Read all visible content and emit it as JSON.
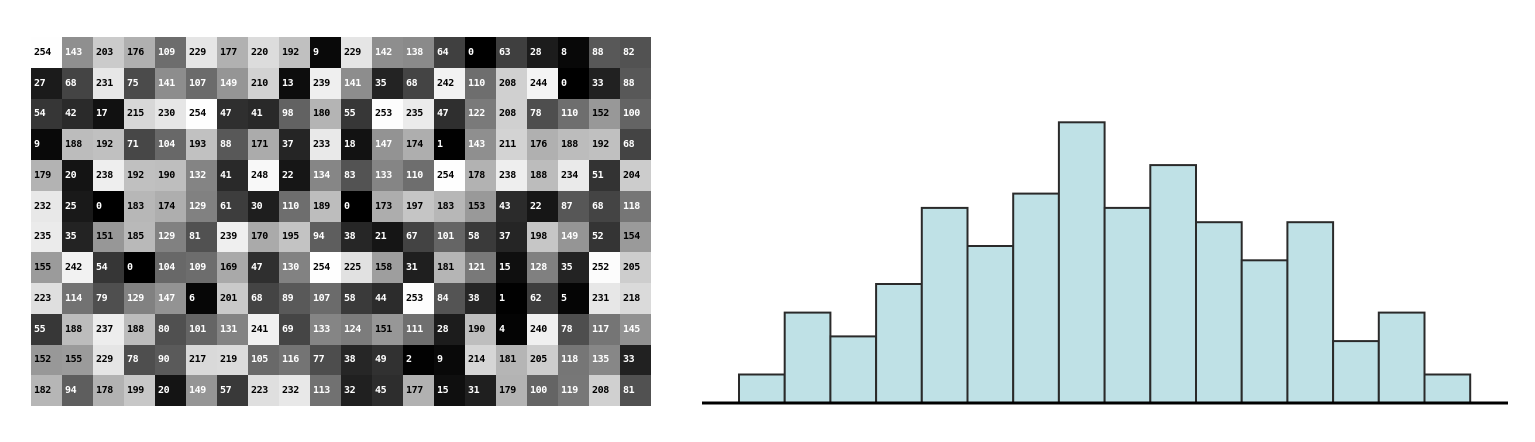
{
  "pixel_grid": {
    "rows": [
      [
        254,
        143,
        203,
        176,
        109,
        229,
        177,
        220,
        192,
        9,
        229,
        142,
        138,
        64,
        0,
        63,
        28,
        8,
        88,
        82
      ],
      [
        27,
        68,
        231,
        75,
        141,
        107,
        149,
        210,
        13,
        239,
        141,
        35,
        68,
        242,
        110,
        208,
        244,
        0,
        33,
        88
      ],
      [
        54,
        42,
        17,
        215,
        230,
        254,
        47,
        41,
        98,
        180,
        55,
        253,
        235,
        47,
        122,
        208,
        78,
        110,
        152,
        100
      ],
      [
        9,
        188,
        192,
        71,
        104,
        193,
        88,
        171,
        37,
        233,
        18,
        147,
        174,
        1,
        143,
        211,
        176,
        188,
        192,
        68
      ],
      [
        179,
        20,
        238,
        192,
        190,
        132,
        41,
        248,
        22,
        134,
        83,
        133,
        110,
        254,
        178,
        238,
        188,
        234,
        51,
        204
      ],
      [
        232,
        25,
        0,
        183,
        174,
        129,
        61,
        30,
        110,
        189,
        0,
        173,
        197,
        183,
        153,
        43,
        22,
        87,
        68,
        118
      ],
      [
        235,
        35,
        151,
        185,
        129,
        81,
        239,
        170,
        195,
        94,
        38,
        21,
        67,
        101,
        58,
        37,
        198,
        149,
        52,
        154
      ],
      [
        155,
        242,
        54,
        0,
        104,
        109,
        169,
        47,
        130,
        254,
        225,
        158,
        31,
        181,
        121,
        15,
        128,
        35,
        252,
        205
      ],
      [
        223,
        114,
        79,
        129,
        147,
        6,
        201,
        68,
        89,
        107,
        58,
        44,
        253,
        84,
        38,
        1,
        62,
        5,
        231,
        218
      ],
      [
        55,
        188,
        237,
        188,
        80,
        101,
        131,
        241,
        69,
        133,
        124,
        151,
        111,
        28,
        190,
        4,
        240,
        78,
        117,
        145
      ],
      [
        152,
        155,
        229,
        78,
        90,
        217,
        219,
        105,
        116,
        77,
        38,
        49,
        2,
        9,
        214,
        181,
        205,
        118,
        135,
        33
      ],
      [
        182,
        94,
        178,
        199,
        20,
        149,
        57,
        223,
        232,
        113,
        32,
        45,
        177,
        15,
        31,
        179,
        100,
        119,
        208,
        81
      ]
    ]
  },
  "chart_data": {
    "type": "bar",
    "bar_color": "#bfe1e6",
    "title": "",
    "xlabel": "",
    "ylabel": "",
    "grid": false,
    "legend": false,
    "values": [
      6,
      19,
      14,
      25,
      41,
      33,
      44,
      59,
      41,
      50,
      38,
      30,
      38,
      13,
      19,
      6
    ],
    "ylim": [
      0,
      62
    ]
  }
}
